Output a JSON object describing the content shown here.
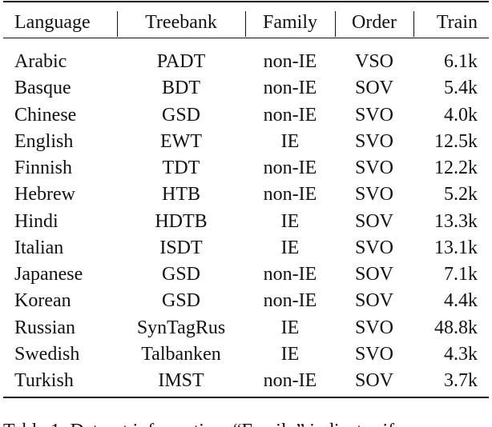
{
  "table": {
    "header": [
      "Language",
      "Treebank",
      "Family",
      "Order",
      "Train"
    ],
    "rows": [
      [
        "Arabic",
        "PADT",
        "non-IE",
        "VSO",
        "6.1k"
      ],
      [
        "Basque",
        "BDT",
        "non-IE",
        "SOV",
        "5.4k"
      ],
      [
        "Chinese",
        "GSD",
        "non-IE",
        "SVO",
        "4.0k"
      ],
      [
        "English",
        "EWT",
        "IE",
        "SVO",
        "12.5k"
      ],
      [
        "Finnish",
        "TDT",
        "non-IE",
        "SVO",
        "12.2k"
      ],
      [
        "Hebrew",
        "HTB",
        "non-IE",
        "SVO",
        "5.2k"
      ],
      [
        "Hindi",
        "HDTB",
        "IE",
        "SOV",
        "13.3k"
      ],
      [
        "Italian",
        "ISDT",
        "IE",
        "SVO",
        "13.1k"
      ],
      [
        "Japanese",
        "GSD",
        "non-IE",
        "SOV",
        "7.1k"
      ],
      [
        "Korean",
        "GSD",
        "non-IE",
        "SOV",
        "4.4k"
      ],
      [
        "Russian",
        "SynTagRus",
        "IE",
        "SVO",
        "48.8k"
      ],
      [
        "Swedish",
        "Talbanken",
        "IE",
        "SVO",
        "4.3k"
      ],
      [
        "Turkish",
        "IMST",
        "non-IE",
        "SOV",
        "3.7k"
      ]
    ]
  },
  "caption": "Table 1:  Dataset information. “Family” indicates if"
}
